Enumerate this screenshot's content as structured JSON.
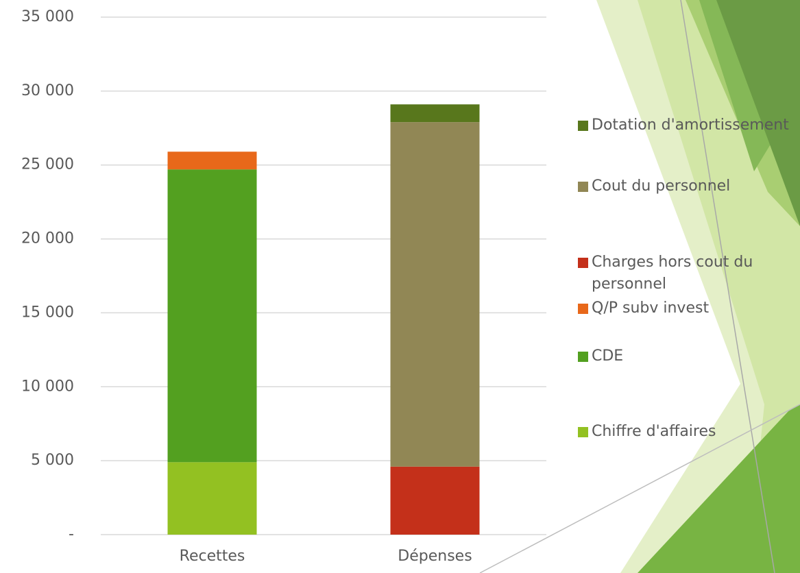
{
  "chart_data": {
    "type": "stacked-bar",
    "categories": [
      "Recettes",
      "Dépenses"
    ],
    "series": [
      {
        "name": "Chiffre d'affaires",
        "color": "#93c122",
        "values": [
          4900,
          null
        ]
      },
      {
        "name": "CDE",
        "color": "#53a020",
        "values": [
          19800,
          null
        ]
      },
      {
        "name": "Q/P subv invest",
        "color": "#e8681a",
        "values": [
          1200,
          null
        ]
      },
      {
        "name": "Charges hors cout du personnel",
        "color": "#c4301a",
        "values": [
          null,
          4600
        ]
      },
      {
        "name": "Cout du personnel",
        "color": "#918755",
        "values": [
          null,
          23300
        ]
      },
      {
        "name": "Dotation d'amortissement",
        "color": "#58771c",
        "values": [
          null,
          1200
        ]
      }
    ],
    "ylim": [
      0,
      35000
    ],
    "yticks": [
      {
        "value": 0,
        "label": "-"
      },
      {
        "value": 5000,
        "label": "5 000"
      },
      {
        "value": 10000,
        "label": "10 000"
      },
      {
        "value": 15000,
        "label": "15 000"
      },
      {
        "value": 20000,
        "label": "20 000"
      },
      {
        "value": 25000,
        "label": "25 000"
      },
      {
        "value": 30000,
        "label": "30 000"
      },
      {
        "value": 35000,
        "label": "35 000"
      }
    ],
    "grid": true,
    "legend": "right"
  }
}
